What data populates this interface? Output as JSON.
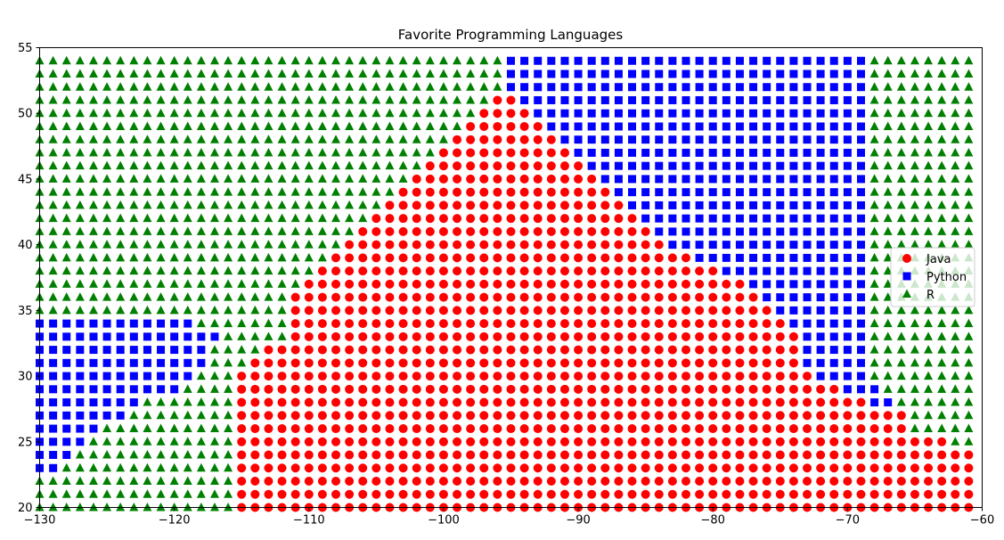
{
  "chart_data": {
    "type": "scatter",
    "title": "Favorite Programming Languages",
    "xlabel": "",
    "ylabel": "",
    "xlim": [
      -130,
      -60
    ],
    "ylim": [
      20,
      55
    ],
    "x_ticks": [
      -130,
      -120,
      -110,
      -100,
      -90,
      -80,
      -70,
      -60
    ],
    "y_ticks": [
      20,
      25,
      30,
      35,
      40,
      45,
      50,
      55
    ],
    "grid": false,
    "legend_position": "right",
    "grid_points": {
      "x_start": -130,
      "x_step": 1,
      "x_count": 70,
      "y_start": 20,
      "y_step": 1,
      "y_count": 35
    },
    "series": [
      {
        "name": "Java",
        "color": "#ff0000",
        "marker": "circle"
      },
      {
        "name": "Python",
        "color": "#0000ff",
        "marker": "square"
      },
      {
        "name": "R",
        "color": "#008000",
        "marker": "triangle"
      }
    ],
    "labels_by_row": [
      "RRRRRRRRRRRRRRRJJJJJJJJJJJJJJJJJJJJJJJJJJJJJJJJJJJJJJJJJJJJJJJJJJJJJJJ",
      "RRRRRRRRRRRRRRRJJJJJJJJJJJJJJJJJJJJJJJJJJJJJJJJJJJJJJJJJJJJJJJJJJJJJJJ",
      "RRRRRRRRRRRRRRRJJJJJJJJJJJJJJJJJJJJJJJJJJJJJJJJJJJJJJJJJJJJJJJJJJJJJJJ",
      "PPRRRRRRRRRRRRRJJJJJJJJJJJJJJJJJJJJJJJJJJJJJJJJJJJJJJJJJJJJJJJJJJJJJJJ",
      "PPPRRRRRRRRRRRRJJJJJJJJJJJJJJJJJJJJJJJJJJJJJJJJJJJJJJJJJJJJJJJJJJJJJJJ",
      "PPPPRRRRRRRRRRRJJJJJJJJJJJJJJJJJJJJJJJJJJJJJJJJJJJJJJJJJJJJJJJJJJJJJRR",
      "PPPPPRRRRRRRRRRJJJJJJJJJJJJJJJJJJJJJJJJJJJJJJJJJJJJJJJJJJJJJJJJJJRRRRR",
      "PPPPPPPRRRRRRRRJJJJJJJJJJJJJJJJJJJJJJJJJJJJJJJJJJJJJJJJJJJJJJJJJJRRRRR",
      "PPPPPPPPRRRRRRRJJJJJJJJJJJJJJJJJJJJJJJJJJJJJJJJJJJJJJJJJJJJJJJPPRRRRRR",
      "PPPPPPPPPPPRRRRJJJJJJJJJJJJJJJJJJJJJJJJJJJJJJJJJJJJJJJJJJJJJPPPRRRRRRR",
      "PPPPPPPPPPPPRRRJJJJJJJJJJJJJJJJJJJJJJJJJJJJJJJJJJJJJJJJJJJPPPPRRRRRRRR",
      "PPPPPPPPPPPPPRRRJJJJJJJJJJJJJJJJJJJJJJJJJJJJJJJJJJJJJJJJJPPPPPRRRRRRRR",
      "PPPPPPPPPPPPPRRRRJJJJJJJJJJJJJJJJJJJJJJJJJJJJJJJJJJJJJJJJPPPPPRRRRRRRR",
      "PPPPPPPPPPPPPPRRRRRJJJJJJJJJJJJJJJJJJJJJJJJJJJJJJJJJJJJJJPPPPPRRRRRRRR",
      "PPPPPPPPPPPPRRRRRRRJJJJJJJJJJJJJJJJJJJJJJJJJJJJJJJJJJJJJPPPPPPRRRRRRRR",
      "RRRRRRRRRRRRRRRRRRRJJJJJJJJJJJJJJJJJJJJJJJJJJJJJJJJJJJJPPPPPPPRRRRRRRR",
      "RRRRRRRRRRRRRRRRRRRJJJJJJJJJJJJJJJJJJJJJJJJJJJJJJJJJJJPPPPPPPPRRRRRRRR",
      "RRRRRRRRRRRRRRRRRRRRJJJJJJJJJJJJJJJJJJJJJJJJJJJJJJJJJPPPPPPPPPRRRRRRRR",
      "RRRRRRRRRRRRRRRRRRRRRJJJJJJJJJJJJJJJJJJJJJJJJJJJJJJPPPPPPPPPPPRRRRRRRR",
      "RRRRRRRRRRRRRRRRRRRRRRJJJJJJJJJJJJJJJJJJJJJJJJJJJPPPPPPPPPPPPPRRRRRRRR",
      "RRRRRRRRRRRRRRRRRRRRRRRJJJJJJJJJJJJJJJJJJJJJJJJPPPPPPPPPPPPPPPRRRRRRRR",
      "RRRRRRRRRRRRRRRRRRRRRRRRJJJJJJJJJJJJJJJJJJJJJJPPPPPPPPPPPPPPPPRRRRRRRR",
      "RRRRRRRRRRRRRRRRRRRRRRRRRJJJJJJJJJJJJJJJJJJJJPPPPPPPPPPPPPPPPPRRRRRRRR",
      "RRRRRRRRRRRRRRRRRRRRRRRRRRJJJJJJJJJJJJJJJJJJPPPPPPPPPPPPPPPPPPRRRRRRRR",
      "RRRRRRRRRRRRRRRRRRRRRRRRRRRJJJJJJJJJJJJJJJJPPPPPPPPPPPPPPPPPPPRRRRRRRR",
      "RRRRRRRRRRRRRRRRRRRRRRRRRRRRJJJJJJJJJJJJJJPPPPPPPPPPPPPPPPPPPPRRRRRRRR",
      "RRRRRRRRRRRRRRRRRRRRRRRRRRRRRJJJJJJJJJJJJPPPPPPPPPPPPPPPPPPPPPRRRRRRRR",
      "RRRRRRRRRRRRRRRRRRRRRRRRRRRRRRJJJJJJJJJJPPPPPPPPPPPPPPPPPPPPPPRRRRRRRR",
      "RRRRRRRRRRRRRRRRRRRRRRRRRRRRRRRJJJJJJJJPPPPPPPPPPPPPPPPPPPPPPPRRRRRRRR",
      "RRRRRRRRRRRRRRRRRRRRRRRRRRRRRRRRJJJJJJPPPPPPPPPPPPPPPPPPPPPPPPRRRRRRRR",
      "RRRRRRRRRRRRRRRRRRRRRRRRRRRRRRRRRJJJJPPPPPPPPPPPPPPPPPPPPPPPPPRRRRRRRR",
      "RRRRRRRRRRRRRRRRRRRRRRRRRRRRRRRRRRJJPPPPPPPPPPPPPPPPPPPPPPPPPPRRRRRRRR",
      "RRRRRRRRRRRRRRRRRRRRRRRRRRRRRRRRRRRPPPPPPPPPPPPPPPPPPPPPPPPPPPRRRRRRRR",
      "RRRRRRRRRRRRRRRRRRRRRRRRRRRRRRRRRRRPPPPPPPPPPPPPPPPPPPPPPPPPPPRRRRRRRR",
      "RRRRRRRRRRRRRRRRRRRRRRRRRRRRRRRRRRRPPPPPPPPPPPPPPPPPPPPPPPPPPPRRRRRRRR"
    ]
  }
}
